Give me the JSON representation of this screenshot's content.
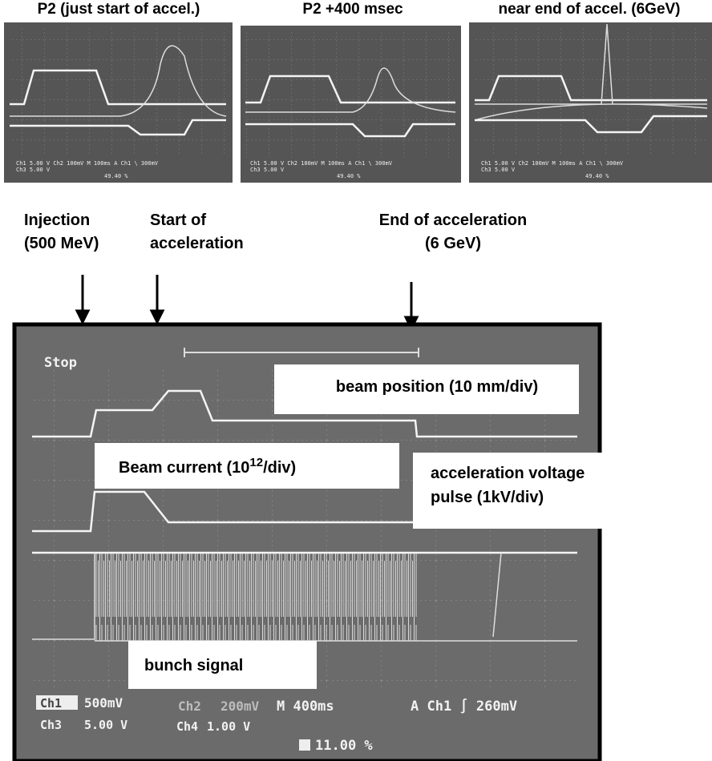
{
  "panels": [
    {
      "title": "P2 (just start of accel.)",
      "readout_1": "Ch1  5.00 V   Ch2  100mV  M 100ms  A  Ch1  \\  300mV",
      "readout_2": "Ch3  5.00 V",
      "readout_3": "49.40 %"
    },
    {
      "title": "P2 +400 msec",
      "readout_1": "Ch1  5.00 V   Ch2  100mV  M 100ms  A  Ch1  \\  300mV",
      "readout_2": "Ch3  5.00 V",
      "readout_3": "49.40 %"
    },
    {
      "title": "near end of accel. (6GeV)",
      "readout_1": "Ch1  5.00 V   Ch2  100mV  M 100ms  A  Ch1  \\  300mV",
      "readout_2": "Ch3  5.00 V",
      "readout_3": "49.40 %"
    }
  ],
  "events": [
    {
      "lines": [
        "Injection",
        "(500 MeV)"
      ]
    },
    {
      "lines": [
        "Start of",
        "acceleration"
      ]
    },
    {
      "lines": [
        "End of acceleration",
        "(6 GeV)"
      ]
    }
  ],
  "scope": {
    "status": "Stop",
    "beam_position": "beam position (10 mm/div)",
    "beam_current": {
      "text": "Beam current (10",
      "sup": "12",
      "tail": "/div)"
    },
    "voltage": [
      "acceleration voltage",
      "pulse (1kV/div)"
    ],
    "bunch": "bunch signal",
    "readouts": {
      "ch1": "Ch1",
      "ch1_scale": "500mV",
      "ch2": "Ch2",
      "ch2_scale": "200mV",
      "time": "M 400ms",
      "trigger": "A  Ch1  ∫  260mV",
      "ch3": "Ch3",
      "ch3_scale": "5.00 V",
      "ch4": "Ch4",
      "ch4_scale": "1.00 V",
      "position": "11.00 %"
    }
  }
}
